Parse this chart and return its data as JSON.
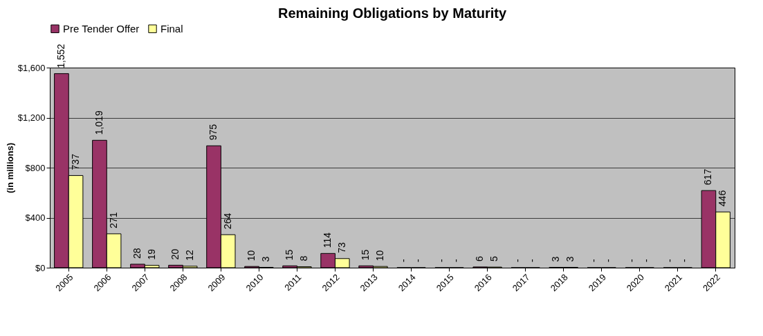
{
  "chart_data": {
    "type": "bar",
    "title": "Remaining Obligations by Maturity",
    "ylabel": "(in millions)",
    "categories": [
      "2005",
      "2006",
      "2007",
      "2008",
      "2009",
      "2010",
      "2011",
      "2012",
      "2013",
      "2014",
      "2015",
      "2016",
      "2017",
      "2018",
      "2019",
      "2020",
      "2021",
      "2022"
    ],
    "series": [
      {
        "name": "Pre Tender Offer",
        "color": "#993366",
        "values": [
          1552,
          1019,
          28,
          20,
          975,
          10,
          15,
          114,
          15,
          0,
          0,
          6,
          0,
          3,
          0,
          0,
          0,
          617
        ],
        "value_labels": [
          "1,552",
          "1,019",
          "28",
          "20",
          "975",
          "10",
          "15",
          "114",
          "15",
          "-",
          "-",
          "6",
          "-",
          "3",
          "-",
          "-",
          "-",
          "617"
        ]
      },
      {
        "name": "Final",
        "color": "#ffff99",
        "values": [
          737,
          271,
          19,
          12,
          264,
          3,
          8,
          73,
          10,
          0,
          0,
          5,
          0,
          3,
          0,
          0,
          0,
          446
        ],
        "value_labels": [
          "737",
          "271",
          "19",
          "12",
          "264",
          "3",
          "8",
          "73",
          "10",
          "-",
          "-",
          "5",
          "-",
          "3",
          "-",
          "-",
          "-",
          "446"
        ]
      }
    ],
    "ylim": [
      0,
      1600
    ],
    "yticks": [
      {
        "value": 0,
        "label": "$0"
      },
      {
        "value": 400,
        "label": "$400"
      },
      {
        "value": 800,
        "label": "$800"
      },
      {
        "value": 1200,
        "label": "$1,200"
      },
      {
        "value": 1600,
        "label": "$1,600"
      }
    ],
    "grid": "y",
    "legend": "top"
  }
}
